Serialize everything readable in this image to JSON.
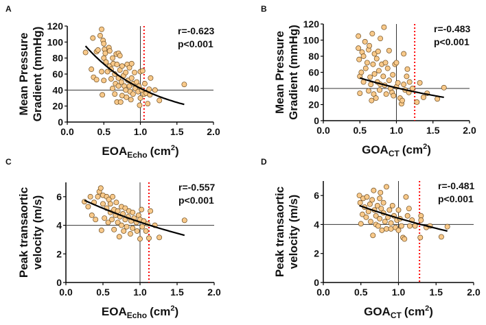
{
  "colors": {
    "point_fill": "#f8c98a",
    "point_stroke": "#6b4a1e",
    "fit": "#000000",
    "threshold": "#ff0000",
    "reference": "#333333"
  },
  "chart_data": [
    {
      "type": "scatter",
      "panel": "A",
      "xlabel_main": "EOA",
      "xlabel_sub": "Echo",
      "xlabel_unit": "(cm",
      "xlabel_sup": "2",
      "xlabel_close": ")",
      "ylabel_lines": [
        "Mean Pressure",
        "Gradient (mmHg)"
      ],
      "xlim": [
        0,
        2
      ],
      "ylim": [
        0,
        120
      ],
      "xticks": [
        "0.0",
        "0.5",
        "1.0",
        "1.5",
        "2.0"
      ],
      "xtick_values": [
        0,
        0.5,
        1,
        1.5,
        2
      ],
      "yticks": [
        "0",
        "20",
        "40",
        "60",
        "80",
        "100",
        "120"
      ],
      "ytick_values": [
        0,
        20,
        40,
        60,
        80,
        100,
        120
      ],
      "annotation": [
        "r=-0.623",
        "p<0.001"
      ],
      "hline": 40,
      "vline": 1.0,
      "threshold_line": 1.05,
      "fit": {
        "model": "exponential",
        "a": 124.6,
        "b": -1.083,
        "x_range": [
          0.25,
          1.6
        ]
      },
      "points": [
        [
          0.25,
          87
        ],
        [
          0.33,
          66
        ],
        [
          0.35,
          105
        ],
        [
          0.36,
          56
        ],
        [
          0.4,
          53
        ],
        [
          0.4,
          88
        ],
        [
          0.42,
          90
        ],
        [
          0.45,
          108
        ],
        [
          0.47,
          116
        ],
        [
          0.47,
          63
        ],
        [
          0.48,
          34
        ],
        [
          0.49,
          102
        ],
        [
          0.5,
          98
        ],
        [
          0.5,
          52
        ],
        [
          0.5,
          80
        ],
        [
          0.51,
          91
        ],
        [
          0.52,
          86
        ],
        [
          0.53,
          75
        ],
        [
          0.55,
          63
        ],
        [
          0.57,
          93
        ],
        [
          0.58,
          89
        ],
        [
          0.58,
          70
        ],
        [
          0.6,
          54
        ],
        [
          0.6,
          66
        ],
        [
          0.62,
          42
        ],
        [
          0.62,
          80
        ],
        [
          0.63,
          73
        ],
        [
          0.65,
          60
        ],
        [
          0.65,
          35
        ],
        [
          0.66,
          48
        ],
        [
          0.67,
          85
        ],
        [
          0.68,
          72
        ],
        [
          0.68,
          25
        ],
        [
          0.7,
          86
        ],
        [
          0.7,
          45
        ],
        [
          0.7,
          55
        ],
        [
          0.72,
          65
        ],
        [
          0.72,
          83
        ],
        [
          0.73,
          25
        ],
        [
          0.74,
          50
        ],
        [
          0.75,
          70
        ],
        [
          0.75,
          33
        ],
        [
          0.77,
          58
        ],
        [
          0.78,
          45
        ],
        [
          0.8,
          62
        ],
        [
          0.8,
          40
        ],
        [
          0.81,
          31
        ],
        [
          0.82,
          72
        ],
        [
          0.83,
          52
        ],
        [
          0.85,
          68
        ],
        [
          0.85,
          45
        ],
        [
          0.86,
          38
        ],
        [
          0.87,
          28
        ],
        [
          0.88,
          55
        ],
        [
          0.88,
          73
        ],
        [
          0.9,
          48
        ],
        [
          0.9,
          35
        ],
        [
          0.92,
          62
        ],
        [
          0.93,
          42
        ],
        [
          0.95,
          50
        ],
        [
          0.97,
          38
        ],
        [
          0.98,
          45
        ],
        [
          0.99,
          21
        ],
        [
          1.0,
          63
        ],
        [
          1.0,
          30
        ],
        [
          1.02,
          40
        ],
        [
          1.03,
          64
        ],
        [
          1.05,
          35
        ],
        [
          1.06,
          48
        ],
        [
          1.08,
          36
        ],
        [
          1.1,
          23
        ],
        [
          1.12,
          41
        ],
        [
          1.13,
          34
        ],
        [
          1.14,
          55
        ],
        [
          1.2,
          40
        ],
        [
          1.26,
          27
        ],
        [
          1.6,
          47
        ]
      ]
    },
    {
      "type": "scatter",
      "panel": "B",
      "xlabel_main": "GOA",
      "xlabel_sub": "CT",
      "xlabel_unit": "(cm",
      "xlabel_sup": "2",
      "xlabel_close": ")",
      "ylabel_lines": [
        "Mean Pressure",
        "Gradient (mmHg)"
      ],
      "xlim": [
        0,
        2
      ],
      "ylim": [
        0,
        120
      ],
      "xticks": [
        "0.0",
        "0.5",
        "1.0",
        "1.5",
        "2.0"
      ],
      "xtick_values": [
        0,
        0.5,
        1,
        1.5,
        2
      ],
      "yticks": [
        "0",
        "20",
        "40",
        "60",
        "80",
        "100",
        "120"
      ],
      "ytick_values": [
        0,
        20,
        40,
        60,
        80,
        100,
        120
      ],
      "annotation": [
        "r=-0.483",
        "p<0.001"
      ],
      "hline": 40,
      "vline": 1.0,
      "threshold_line": 1.25,
      "fit": {
        "model": "exponential",
        "a": 68.9,
        "b": -0.524,
        "x_range": [
          0.5,
          1.65
        ]
      },
      "points": [
        [
          0.48,
          90
        ],
        [
          0.48,
          105
        ],
        [
          0.49,
          76
        ],
        [
          0.5,
          34
        ],
        [
          0.5,
          55
        ],
        [
          0.52,
          60
        ],
        [
          0.53,
          85
        ],
        [
          0.55,
          80
        ],
        [
          0.55,
          48
        ],
        [
          0.57,
          98
        ],
        [
          0.58,
          65
        ],
        [
          0.6,
          72
        ],
        [
          0.62,
          88
        ],
        [
          0.62,
          37
        ],
        [
          0.63,
          93
        ],
        [
          0.64,
          54
        ],
        [
          0.65,
          45
        ],
        [
          0.66,
          25
        ],
        [
          0.67,
          108
        ],
        [
          0.68,
          70
        ],
        [
          0.69,
          33
        ],
        [
          0.7,
          83
        ],
        [
          0.7,
          58
        ],
        [
          0.72,
          28
        ],
        [
          0.73,
          77
        ],
        [
          0.74,
          48
        ],
        [
          0.75,
          86
        ],
        [
          0.76,
          62
        ],
        [
          0.77,
          38
        ],
        [
          0.78,
          102
        ],
        [
          0.78,
          45
        ],
        [
          0.8,
          70
        ],
        [
          0.82,
          55
        ],
        [
          0.83,
          116
        ],
        [
          0.84,
          44
        ],
        [
          0.85,
          72
        ],
        [
          0.86,
          33
        ],
        [
          0.88,
          65
        ],
        [
          0.9,
          87
        ],
        [
          0.9,
          50
        ],
        [
          0.92,
          40
        ],
        [
          0.94,
          35
        ],
        [
          0.95,
          57
        ],
        [
          0.96,
          31
        ],
        [
          0.98,
          70
        ],
        [
          1.0,
          72
        ],
        [
          1.0,
          42
        ],
        [
          1.02,
          47
        ],
        [
          1.05,
          28
        ],
        [
          1.07,
          21
        ],
        [
          1.08,
          25
        ],
        [
          1.1,
          83
        ],
        [
          1.1,
          45
        ],
        [
          1.12,
          38
        ],
        [
          1.14,
          55
        ],
        [
          1.15,
          64
        ],
        [
          1.17,
          35
        ],
        [
          1.18,
          48
        ],
        [
          1.22,
          40
        ],
        [
          1.28,
          23
        ],
        [
          1.32,
          47
        ],
        [
          1.37,
          29
        ],
        [
          1.42,
          34
        ],
        [
          1.56,
          27
        ],
        [
          1.65,
          41
        ]
      ]
    },
    {
      "type": "scatter",
      "panel": "C",
      "xlabel_main": "EOA",
      "xlabel_sub": "Echo",
      "xlabel_unit": "(cm",
      "xlabel_sup": "2",
      "xlabel_close": ")",
      "ylabel_lines": [
        "Peak transaortic",
        "velocity (m/s)"
      ],
      "xlim": [
        0,
        2
      ],
      "ylim": [
        0,
        7
      ],
      "xticks": [
        "0.0",
        "0.5",
        "1.0",
        "1.5",
        "2.0"
      ],
      "xtick_values": [
        0,
        0.5,
        1,
        1.5,
        2
      ],
      "yticks": [
        "0",
        "2",
        "4",
        "6"
      ],
      "ytick_values": [
        0,
        2,
        4,
        6
      ],
      "annotation": [
        "r=-0.557",
        "p<0.001"
      ],
      "hline": 4,
      "vline": 1.0,
      "threshold_line": 1.12,
      "fit": {
        "model": "exponential",
        "a": 6.37,
        "b": -0.411,
        "x_range": [
          0.25,
          1.6
        ]
      },
      "points": [
        [
          0.25,
          5.65
        ],
        [
          0.3,
          5.3
        ],
        [
          0.33,
          6.0
        ],
        [
          0.35,
          4.7
        ],
        [
          0.38,
          5.6
        ],
        [
          0.4,
          4.4
        ],
        [
          0.43,
          6.0
        ],
        [
          0.45,
          6.35
        ],
        [
          0.47,
          6.6
        ],
        [
          0.48,
          3.65
        ],
        [
          0.5,
          6.1
        ],
        [
          0.5,
          5.5
        ],
        [
          0.52,
          4.5
        ],
        [
          0.55,
          6.0
        ],
        [
          0.55,
          5.2
        ],
        [
          0.57,
          4.2
        ],
        [
          0.58,
          5.8
        ],
        [
          0.6,
          4.9
        ],
        [
          0.6,
          5.5
        ],
        [
          0.62,
          4.4
        ],
        [
          0.63,
          6.0
        ],
        [
          0.65,
          3.7
        ],
        [
          0.65,
          5.1
        ],
        [
          0.67,
          4.7
        ],
        [
          0.68,
          5.6
        ],
        [
          0.7,
          4.2
        ],
        [
          0.7,
          5.0
        ],
        [
          0.72,
          3.2
        ],
        [
          0.73,
          4.6
        ],
        [
          0.75,
          5.3
        ],
        [
          0.75,
          4.0
        ],
        [
          0.77,
          4.8
        ],
        [
          0.78,
          3.6
        ],
        [
          0.8,
          4.4
        ],
        [
          0.8,
          5.2
        ],
        [
          0.82,
          3.9
        ],
        [
          0.84,
          4.6
        ],
        [
          0.85,
          5.0
        ],
        [
          0.87,
          3.4
        ],
        [
          0.88,
          4.3
        ],
        [
          0.9,
          4.9
        ],
        [
          0.9,
          3.8
        ],
        [
          0.92,
          4.5
        ],
        [
          0.95,
          4.2
        ],
        [
          0.96,
          3.6
        ],
        [
          0.98,
          4.7
        ],
        [
          1.0,
          3.05
        ],
        [
          1.0,
          4.4
        ],
        [
          1.02,
          5.1
        ],
        [
          1.03,
          3.9
        ],
        [
          1.05,
          4.3
        ],
        [
          1.08,
          3.6
        ],
        [
          1.1,
          4.1
        ],
        [
          1.12,
          3.1
        ],
        [
          1.14,
          5.0
        ],
        [
          1.2,
          4.0
        ],
        [
          1.26,
          3.15
        ],
        [
          1.6,
          4.35
        ]
      ]
    },
    {
      "type": "scatter",
      "panel": "D",
      "xlabel_main": "GOA",
      "xlabel_sub": "CT",
      "xlabel_unit": "(cm",
      "xlabel_sup": "2",
      "xlabel_close": ")",
      "ylabel_lines": [
        "Peak transaortic",
        "velocity (m/s)"
      ],
      "xlim": [
        0,
        2
      ],
      "ylim": [
        0,
        7
      ],
      "xticks": [
        "0.0",
        "0.5",
        "1.0",
        "1.5",
        "2.0"
      ],
      "xtick_values": [
        0,
        0.5,
        1,
        1.5,
        2
      ],
      "yticks": [
        "0",
        "2",
        "4",
        "6"
      ],
      "ytick_values": [
        0,
        2,
        4,
        6
      ],
      "annotation": [
        "r=-0.481",
        "p<0.001"
      ],
      "hline": 4,
      "vline": 1.0,
      "threshold_line": 1.28,
      "fit": {
        "model": "exponential",
        "a": 6.25,
        "b": -0.343,
        "x_range": [
          0.48,
          1.65
        ]
      },
      "points": [
        [
          0.48,
          6.0
        ],
        [
          0.49,
          5.5
        ],
        [
          0.5,
          4.05
        ],
        [
          0.52,
          4.7
        ],
        [
          0.53,
          5.8
        ],
        [
          0.55,
          5.2
        ],
        [
          0.57,
          4.5
        ],
        [
          0.58,
          5.9
        ],
        [
          0.6,
          4.9
        ],
        [
          0.62,
          5.4
        ],
        [
          0.63,
          4.2
        ],
        [
          0.65,
          5.7
        ],
        [
          0.66,
          3.25
        ],
        [
          0.67,
          6.35
        ],
        [
          0.68,
          5.0
        ],
        [
          0.7,
          4.0
        ],
        [
          0.7,
          4.6
        ],
        [
          0.72,
          5.3
        ],
        [
          0.73,
          3.9
        ],
        [
          0.75,
          5.8
        ],
        [
          0.76,
          6.2
        ],
        [
          0.75,
          4.4
        ],
        [
          0.77,
          5.1
        ],
        [
          0.78,
          3.6
        ],
        [
          0.8,
          4.8
        ],
        [
          0.8,
          5.5
        ],
        [
          0.82,
          4.2
        ],
        [
          0.84,
          6.6
        ],
        [
          0.84,
          3.7
        ],
        [
          0.86,
          4.5
        ],
        [
          0.88,
          5.0
        ],
        [
          0.9,
          4.1
        ],
        [
          0.9,
          3.7
        ],
        [
          0.92,
          5.3
        ],
        [
          0.94,
          4.6
        ],
        [
          0.96,
          3.8
        ],
        [
          0.98,
          4.3
        ],
        [
          1.0,
          5.0
        ],
        [
          1.0,
          3.6
        ],
        [
          1.02,
          4.4
        ],
        [
          1.04,
          3.9
        ],
        [
          1.06,
          3.1
        ],
        [
          1.08,
          3.0
        ],
        [
          1.1,
          5.9
        ],
        [
          1.12,
          4.6
        ],
        [
          1.14,
          5.1
        ],
        [
          1.15,
          3.9
        ],
        [
          1.18,
          4.3
        ],
        [
          1.22,
          3.9
        ],
        [
          1.29,
          3.1
        ],
        [
          1.3,
          4.6
        ],
        [
          1.3,
          4.3
        ],
        [
          1.37,
          3.8
        ],
        [
          1.42,
          3.9
        ],
        [
          1.57,
          3.15
        ],
        [
          1.65,
          3.85
        ]
      ]
    }
  ]
}
